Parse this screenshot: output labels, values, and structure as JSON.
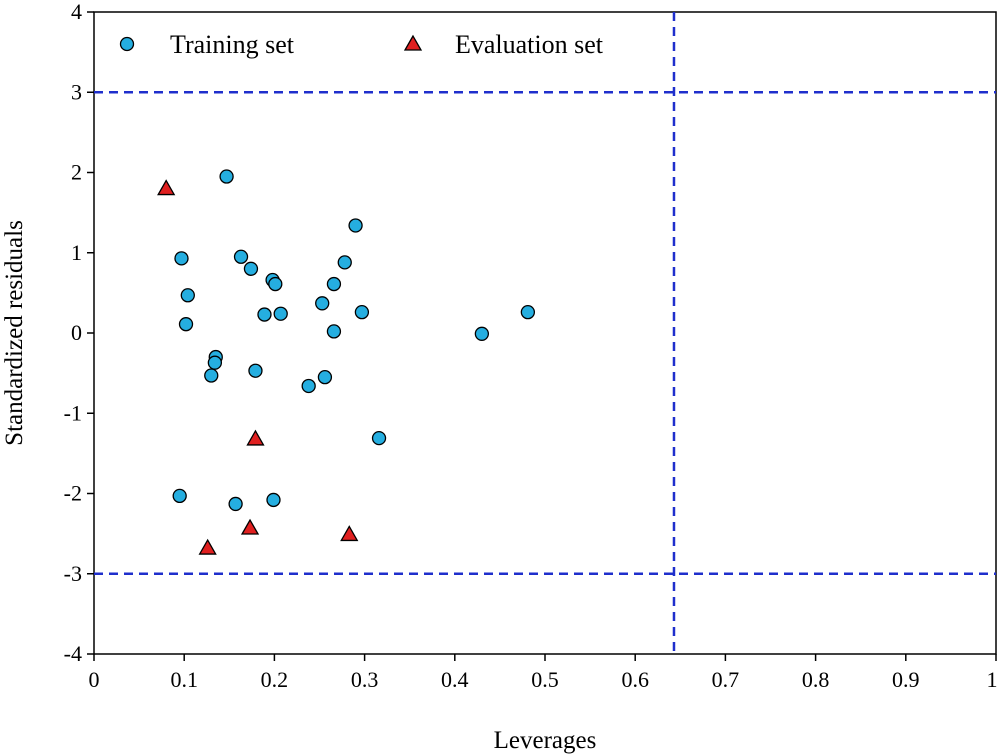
{
  "chart_data": {
    "type": "scatter",
    "xlabel": "Leverages",
    "ylabel": "Standardized residuals",
    "xlim": [
      0,
      1
    ],
    "ylim": [
      -4,
      4
    ],
    "x_ticks": [
      "0",
      "0.1",
      "0.2",
      "0.3",
      "0.4",
      "0.5",
      "0.6",
      "0.7",
      "0.8",
      "0.9",
      "1"
    ],
    "y_ticks": [
      "4",
      "3",
      "2",
      "1",
      "0",
      "-1",
      "-2",
      "-3",
      "-4"
    ],
    "grid": false,
    "legend_position": "top-left",
    "reference_lines": {
      "horizontal": [
        3,
        -3
      ],
      "vertical": [
        0.643
      ],
      "color": "#1f2fcc",
      "style": "dashed"
    },
    "series": [
      {
        "name": "Training set",
        "marker": "circle",
        "color": "#25aee0",
        "points": [
          {
            "x": 0.147,
            "y": 1.95
          },
          {
            "x": 0.29,
            "y": 1.34
          },
          {
            "x": 0.097,
            "y": 0.93
          },
          {
            "x": 0.163,
            "y": 0.95
          },
          {
            "x": 0.174,
            "y": 0.8
          },
          {
            "x": 0.278,
            "y": 0.88
          },
          {
            "x": 0.198,
            "y": 0.66
          },
          {
            "x": 0.201,
            "y": 0.61
          },
          {
            "x": 0.266,
            "y": 0.61
          },
          {
            "x": 0.104,
            "y": 0.47
          },
          {
            "x": 0.253,
            "y": 0.37
          },
          {
            "x": 0.189,
            "y": 0.23
          },
          {
            "x": 0.207,
            "y": 0.24
          },
          {
            "x": 0.297,
            "y": 0.26
          },
          {
            "x": 0.481,
            "y": 0.26
          },
          {
            "x": 0.102,
            "y": 0.11
          },
          {
            "x": 0.266,
            "y": 0.02
          },
          {
            "x": 0.43,
            "y": -0.01
          },
          {
            "x": 0.135,
            "y": -0.3
          },
          {
            "x": 0.134,
            "y": -0.37
          },
          {
            "x": 0.179,
            "y": -0.47
          },
          {
            "x": 0.13,
            "y": -0.53
          },
          {
            "x": 0.256,
            "y": -0.55
          },
          {
            "x": 0.238,
            "y": -0.66
          },
          {
            "x": 0.316,
            "y": -1.31
          },
          {
            "x": 0.095,
            "y": -2.03
          },
          {
            "x": 0.199,
            "y": -2.08
          },
          {
            "x": 0.157,
            "y": -2.13
          }
        ]
      },
      {
        "name": "Evaluation set",
        "marker": "triangle",
        "color": "#e02020",
        "points": [
          {
            "x": 0.08,
            "y": 1.8
          },
          {
            "x": 0.179,
            "y": -1.32
          },
          {
            "x": 0.173,
            "y": -2.43
          },
          {
            "x": 0.283,
            "y": -2.51
          },
          {
            "x": 0.126,
            "y": -2.68
          }
        ]
      }
    ]
  }
}
